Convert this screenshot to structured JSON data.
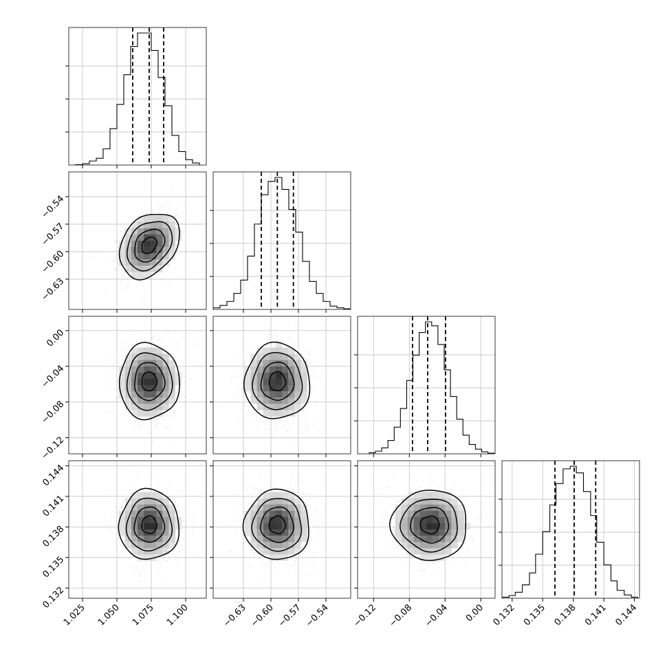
{
  "chart_data": {
    "type": "corner",
    "grid": true,
    "params": [
      {
        "mean": 1.0735,
        "sigma": 0.0095,
        "range": [
          1.015,
          1.115
        ],
        "ticks": [
          1.025,
          1.05,
          1.075,
          1.1
        ],
        "tick_labels": [
          "1.025",
          "1.050",
          "1.075",
          "1.100"
        ],
        "quantiles": [
          1.0615,
          1.0735,
          1.084
        ],
        "hist": {
          "edges": [
            1.02,
            1.025,
            1.03,
            1.035,
            1.04,
            1.045,
            1.05,
            1.055,
            1.06,
            1.065,
            1.07,
            1.075,
            1.08,
            1.085,
            1.09,
            1.095,
            1.1,
            1.105,
            1.11
          ],
          "counts": [
            0.003,
            0.01,
            0.03,
            0.05,
            0.12,
            0.27,
            0.45,
            0.67,
            0.88,
            0.98,
            0.98,
            0.85,
            0.65,
            0.44,
            0.22,
            0.1,
            0.04,
            0.015
          ]
        }
      },
      {
        "mean": -0.593,
        "sigma": 0.0155,
        "range": [
          -0.663,
          -0.513
        ],
        "ticks": [
          -0.63,
          -0.6,
          -0.57,
          -0.54
        ],
        "tick_labels": [
          "−0.63",
          "−0.60",
          "−0.57",
          "−0.54"
        ],
        "quantiles": [
          -0.6105,
          -0.593,
          -0.5755
        ],
        "hist": {
          "edges": [
            -0.663,
            -0.6555,
            -0.648,
            -0.6405,
            -0.633,
            -0.6255,
            -0.618,
            -0.6105,
            -0.603,
            -0.5955,
            -0.588,
            -0.5805,
            -0.573,
            -0.5655,
            -0.558,
            -0.5505,
            -0.543,
            -0.5355,
            -0.528,
            -0.5205,
            -0.513
          ],
          "counts": [
            0.012,
            0.03,
            0.06,
            0.12,
            0.22,
            0.4,
            0.64,
            0.86,
            0.96,
            0.99,
            0.9,
            0.75,
            0.58,
            0.36,
            0.21,
            0.12,
            0.06,
            0.025,
            0.012,
            0.005
          ]
        }
      },
      {
        "mean": -0.057,
        "sigma": 0.0185,
        "range": [
          -0.138,
          0.016
        ],
        "ticks": [
          -0.12,
          -0.08,
          -0.04,
          0.0
        ],
        "tick_labels": [
          "−0.12",
          "−0.08",
          "−0.04",
          "0.00"
        ],
        "quantiles": [
          -0.0765,
          -0.0595,
          -0.0395
        ],
        "hist": {
          "edges": [
            -0.125,
            -0.118,
            -0.111,
            -0.104,
            -0.097,
            -0.09,
            -0.083,
            -0.076,
            -0.069,
            -0.062,
            -0.055,
            -0.048,
            -0.041,
            -0.034,
            -0.027,
            -0.02,
            -0.013,
            -0.006,
            0.001,
            0.008,
            0.015
          ],
          "counts": [
            0.008,
            0.02,
            0.045,
            0.1,
            0.2,
            0.34,
            0.55,
            0.74,
            0.91,
            0.99,
            0.96,
            0.82,
            0.63,
            0.43,
            0.26,
            0.14,
            0.07,
            0.035,
            0.015,
            0.005
          ]
        }
      },
      {
        "mean": 0.1382,
        "sigma": 0.0015,
        "range": [
          0.131,
          0.1445
        ],
        "ticks": [
          0.132,
          0.135,
          0.138,
          0.141,
          0.144
        ],
        "tick_labels": [
          "0.132",
          "0.135",
          "0.138",
          "0.141",
          "0.144"
        ],
        "quantiles": [
          0.1362,
          0.1381,
          0.1402
        ],
        "hist": {
          "edges": [
            0.131,
            0.1317,
            0.1323,
            0.133,
            0.1337,
            0.1343,
            0.135,
            0.1357,
            0.1363,
            0.137,
            0.1377,
            0.1383,
            0.139,
            0.1397,
            0.1403,
            0.141,
            0.1417,
            0.1423,
            0.143,
            0.1437,
            0.1443
          ],
          "counts": [
            0.008,
            0.02,
            0.045,
            0.1,
            0.19,
            0.33,
            0.5,
            0.7,
            0.86,
            0.97,
            0.99,
            0.94,
            0.8,
            0.62,
            0.42,
            0.25,
            0.13,
            0.06,
            0.025,
            0.008
          ]
        }
      }
    ]
  }
}
